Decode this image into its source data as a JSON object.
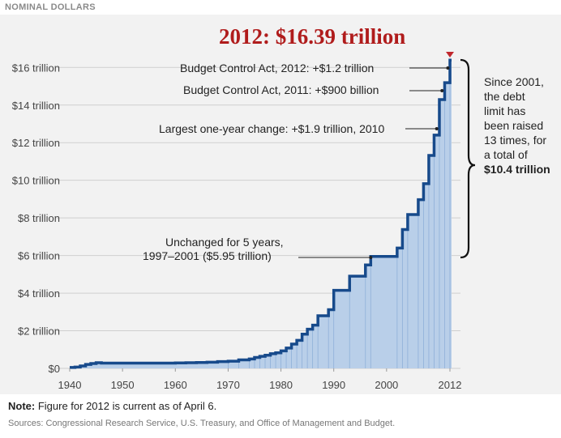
{
  "header": {
    "label": "NOMINAL DOLLARS"
  },
  "headline": "2012: $16.39 trillion",
  "side_note": {
    "lines": [
      "Since 2001,",
      "the debt",
      "limit has",
      "been raised",
      "13 times, for",
      "a total of"
    ],
    "bold": "$10.4 trillion"
  },
  "annotations": {
    "bca2012": "Budget Control Act, 2012: +$1.2 trillion",
    "bca2011": "Budget Control Act, 2011: +$900 billion",
    "largest": "Largest one-year change: +$1.9 trillion, 2010",
    "unchanged_line1": "Unchanged for 5 years,",
    "unchanged_line2": "1997–2001 ($5.95 trillion)"
  },
  "footer": {
    "note_label": "Note:",
    "note_text": " Figure for 2012 is current as of April 6.",
    "sources": "Sources: Congressional Research Service, U.S. Treasury, and Office of Management and Budget."
  },
  "colors": {
    "line": "#174a8b",
    "fill": "#b9cfe9",
    "panel": "#f2f2f2",
    "headline": "#b01c1c",
    "marker": "#c0272d"
  },
  "chart_data": {
    "type": "area",
    "title": "2012: $16.39 trillion",
    "xlabel": "",
    "ylabel": "",
    "xlim": [
      1940,
      2012
    ],
    "ylim": [
      0,
      16.4
    ],
    "y_ticks": [
      0,
      2,
      4,
      6,
      8,
      10,
      12,
      14,
      16
    ],
    "y_tick_labels": [
      "$0",
      "$2 trillion",
      "$4 trillion",
      "$6 trillion",
      "$8 trillion",
      "$10 trillion",
      "$12 trillion",
      "$14 trillion",
      "$16 trillion"
    ],
    "x_ticks": [
      1940,
      1950,
      1960,
      1970,
      1980,
      1990,
      2000,
      2012
    ],
    "x_tick_labels": [
      "1940",
      "1950",
      "1960",
      "1970",
      "1980",
      "1990",
      "2000",
      "2012"
    ],
    "grid": true,
    "step": true,
    "series": [
      {
        "values": [
          [
            1940,
            0.05
          ],
          [
            1941,
            0.07
          ],
          [
            1942,
            0.13
          ],
          [
            1943,
            0.21
          ],
          [
            1944,
            0.26
          ],
          [
            1945,
            0.3
          ],
          [
            1946,
            0.28
          ],
          [
            1954,
            0.28
          ],
          [
            1955,
            0.28
          ],
          [
            1956,
            0.28
          ],
          [
            1958,
            0.28
          ],
          [
            1960,
            0.29
          ],
          [
            1962,
            0.3
          ],
          [
            1964,
            0.31
          ],
          [
            1966,
            0.33
          ],
          [
            1968,
            0.36
          ],
          [
            1970,
            0.38
          ],
          [
            1972,
            0.45
          ],
          [
            1974,
            0.5
          ],
          [
            1975,
            0.58
          ],
          [
            1976,
            0.64
          ],
          [
            1977,
            0.7
          ],
          [
            1978,
            0.78
          ],
          [
            1979,
            0.83
          ],
          [
            1980,
            0.93
          ],
          [
            1981,
            1.08
          ],
          [
            1982,
            1.29
          ],
          [
            1983,
            1.49
          ],
          [
            1984,
            1.82
          ],
          [
            1985,
            2.08
          ],
          [
            1986,
            2.3
          ],
          [
            1987,
            2.8
          ],
          [
            1989,
            3.12
          ],
          [
            1990,
            4.15
          ],
          [
            1993,
            4.9
          ],
          [
            1996,
            5.5
          ],
          [
            1997,
            5.95
          ],
          [
            2002,
            6.4
          ],
          [
            2003,
            7.38
          ],
          [
            2004,
            8.18
          ],
          [
            2006,
            8.97
          ],
          [
            2007,
            9.82
          ],
          [
            2008,
            11.32
          ],
          [
            2009,
            12.4
          ],
          [
            2010,
            14.29
          ],
          [
            2011,
            15.19
          ],
          [
            2012,
            16.39
          ]
        ]
      }
    ]
  }
}
